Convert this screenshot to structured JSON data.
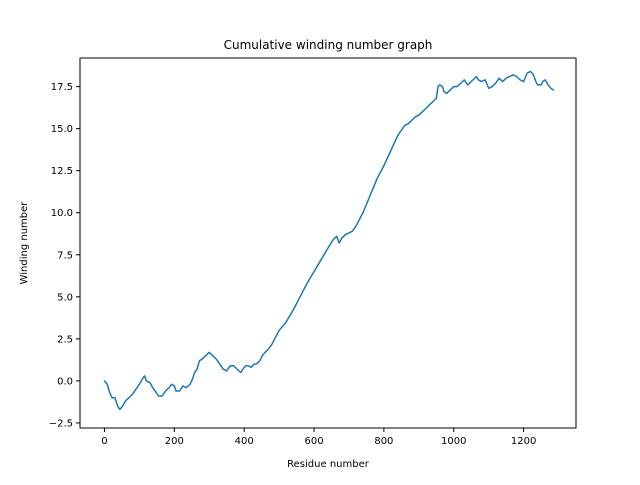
{
  "chart_data": {
    "type": "line",
    "title": "Cumulative winding number graph",
    "xlabel": "Residue number",
    "ylabel": "Winding number",
    "xlim": [
      -70,
      1350
    ],
    "ylim": [
      -2.8,
      19.2
    ],
    "xticks": [
      0,
      200,
      400,
      600,
      800,
      1000,
      1200
    ],
    "xtick_labels": [
      "0",
      "200",
      "400",
      "600",
      "800",
      "1000",
      "1200"
    ],
    "yticks": [
      -2.5,
      0.0,
      2.5,
      5.0,
      7.5,
      10.0,
      12.5,
      15.0,
      17.5
    ],
    "ytick_labels": [
      "−2.5",
      "0.0",
      "2.5",
      "5.0",
      "7.5",
      "10.0",
      "12.5",
      "15.0",
      "17.5"
    ],
    "grid": false,
    "series": [
      {
        "name": "winding number",
        "color": "#1f77b4",
        "x": [
          0,
          8,
          15,
          22,
          30,
          38,
          44,
          52,
          60,
          70,
          80,
          90,
          100,
          108,
          115,
          120,
          130,
          138,
          145,
          155,
          165,
          175,
          185,
          192,
          200,
          205,
          215,
          225,
          235,
          245,
          252,
          258,
          265,
          272,
          280,
          290,
          300,
          310,
          320,
          330,
          340,
          350,
          360,
          370,
          380,
          390,
          400,
          405,
          412,
          420,
          428,
          435,
          445,
          452,
          460,
          470,
          480,
          490,
          500,
          520,
          540,
          560,
          580,
          600,
          620,
          640,
          655,
          665,
          672,
          680,
          690,
          700,
          710,
          720,
          740,
          760,
          780,
          800,
          820,
          840,
          860,
          870,
          880,
          890,
          900,
          910,
          920,
          930,
          940,
          950,
          955,
          960,
          968,
          972,
          980,
          990,
          1000,
          1010,
          1020,
          1030,
          1040,
          1050,
          1060,
          1065,
          1070,
          1080,
          1090,
          1100,
          1110,
          1120,
          1130,
          1140,
          1150,
          1160,
          1170,
          1180,
          1190,
          1200,
          1210,
          1220,
          1228,
          1235,
          1240,
          1250,
          1255,
          1262,
          1270,
          1278,
          1285
        ],
        "y": [
          0.0,
          -0.2,
          -0.7,
          -1.0,
          -1.0,
          -1.5,
          -1.7,
          -1.5,
          -1.2,
          -1.0,
          -0.8,
          -0.5,
          -0.2,
          0.1,
          0.3,
          0.0,
          -0.1,
          -0.4,
          -0.6,
          -0.9,
          -0.9,
          -0.6,
          -0.4,
          -0.2,
          -0.3,
          -0.6,
          -0.6,
          -0.3,
          -0.4,
          -0.2,
          0.1,
          0.5,
          0.7,
          1.2,
          1.3,
          1.5,
          1.7,
          1.5,
          1.3,
          1.0,
          0.7,
          0.6,
          0.9,
          0.9,
          0.7,
          0.5,
          0.8,
          0.9,
          0.9,
          0.8,
          1.0,
          1.0,
          1.2,
          1.5,
          1.7,
          1.9,
          2.2,
          2.6,
          3.0,
          3.5,
          4.2,
          5.0,
          5.8,
          6.5,
          7.2,
          7.9,
          8.4,
          8.6,
          8.2,
          8.5,
          8.7,
          8.8,
          8.9,
          9.2,
          10.0,
          11.0,
          12.0,
          12.8,
          13.7,
          14.6,
          15.2,
          15.3,
          15.5,
          15.7,
          15.8,
          16.0,
          16.2,
          16.4,
          16.6,
          16.8,
          17.5,
          17.6,
          17.5,
          17.2,
          17.1,
          17.3,
          17.5,
          17.5,
          17.7,
          17.9,
          17.6,
          17.8,
          18.0,
          18.1,
          17.9,
          17.8,
          17.9,
          17.4,
          17.5,
          17.7,
          18.0,
          17.8,
          18.0,
          18.1,
          18.2,
          18.1,
          17.9,
          17.8,
          18.3,
          18.4,
          18.2,
          17.8,
          17.6,
          17.6,
          17.8,
          17.9,
          17.6,
          17.4,
          17.3
        ]
      }
    ]
  }
}
